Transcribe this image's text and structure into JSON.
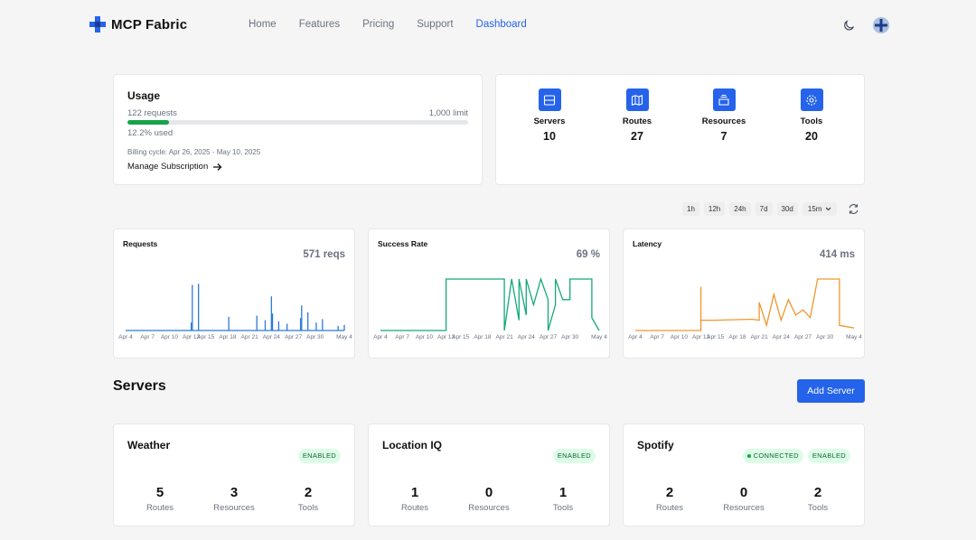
{
  "header": {
    "brand": "MCP Fabric",
    "nav": [
      "Home",
      "Features",
      "Pricing",
      "Support",
      "Dashboard"
    ],
    "active_nav": "Dashboard",
    "icons": [
      "plus-logo-icon",
      "moon-icon",
      "avatar"
    ]
  },
  "usage": {
    "title": "Usage",
    "requests": "122 requests",
    "limit": "1,000 limit",
    "progress_fraction": 0.122,
    "used": "12.2% used",
    "billing": "Billing cycle: Apr 26, 2025 - May 10, 2025",
    "manage": "Manage Subscription"
  },
  "stats": [
    {
      "label": "Servers",
      "value": "10",
      "icon": "server-icon"
    },
    {
      "label": "Routes",
      "value": "27",
      "icon": "map-icon"
    },
    {
      "label": "Resources",
      "value": "7",
      "icon": "archive-icon"
    },
    {
      "label": "Tools",
      "value": "20",
      "icon": "gear-icon"
    }
  ],
  "time_ranges": [
    "1h",
    "12h",
    "24h",
    "7d",
    "30d"
  ],
  "interval": "15m",
  "charts": [
    {
      "title": "Requests",
      "value": "571 reqs",
      "color": "#2a7ad6"
    },
    {
      "title": "Success Rate",
      "value": "69 %",
      "color": "#13a87a"
    },
    {
      "title": "Latency",
      "value": "414 ms",
      "color": "#f0962e"
    }
  ],
  "chart_data": [
    {
      "type": "line",
      "title": "Requests",
      "x": [
        "Apr 4",
        "Apr 7",
        "Apr 10",
        "Apr 13",
        "Apr 15",
        "Apr 18",
        "Apr 21",
        "Apr 24",
        "Apr 27",
        "Apr 30",
        "May 4"
      ],
      "x_range": [
        "Apr 4",
        "May 4"
      ],
      "spikes": [
        {
          "date": "Apr 13",
          "value": 7
        },
        {
          "date": "Apr 13",
          "value": 40
        },
        {
          "date": "Apr 14",
          "value": 41
        },
        {
          "date": "Apr 18",
          "value": 12
        },
        {
          "date": "Apr 22",
          "value": 13
        },
        {
          "date": "Apr 23",
          "value": 9
        },
        {
          "date": "Apr 24",
          "value": 30
        },
        {
          "date": "Apr 24",
          "value": 15
        },
        {
          "date": "Apr 25",
          "value": 8
        },
        {
          "date": "Apr 26",
          "value": 6
        },
        {
          "date": "Apr 28",
          "value": 11
        },
        {
          "date": "Apr 28",
          "value": 22
        },
        {
          "date": "Apr 29",
          "value": 16
        },
        {
          "date": "Apr 30",
          "value": 7
        },
        {
          "date": "May 1",
          "value": 10
        },
        {
          "date": "May 3",
          "value": 4
        },
        {
          "date": "May 4",
          "value": 5
        }
      ]
    },
    {
      "type": "line",
      "title": "Success Rate",
      "x": [
        "Apr 4",
        "Apr 7",
        "Apr 10",
        "Apr 13",
        "Apr 15",
        "Apr 18",
        "Apr 21",
        "Apr 24",
        "Apr 27",
        "Apr 30",
        "May 4"
      ],
      "points": [
        [
          "Apr 4",
          0
        ],
        [
          "Apr 13",
          0
        ],
        [
          "Apr 13",
          100
        ],
        [
          "Apr 21",
          100
        ],
        [
          "Apr 21",
          0
        ],
        [
          "Apr 22",
          100
        ],
        [
          "Apr 23",
          20
        ],
        [
          "Apr 23",
          100
        ],
        [
          "Apr 24",
          30
        ],
        [
          "Apr 24",
          100
        ],
        [
          "Apr 25",
          50
        ],
        [
          "Apr 26",
          100
        ],
        [
          "Apr 27",
          60
        ],
        [
          "Apr 27",
          0
        ],
        [
          "Apr 28",
          50
        ],
        [
          "Apr 28",
          100
        ],
        [
          "Apr 29",
          60
        ],
        [
          "Apr 30",
          60
        ],
        [
          "Apr 30",
          100
        ],
        [
          "May 3",
          100
        ],
        [
          "May 3",
          25
        ],
        [
          "May 4",
          0
        ]
      ]
    },
    {
      "type": "line",
      "title": "Latency",
      "x": [
        "Apr 4",
        "Apr 7",
        "Apr 10",
        "Apr 13",
        "Apr 15",
        "Apr 18",
        "Apr 21",
        "Apr 24",
        "Apr 27",
        "Apr 30",
        "May 4"
      ],
      "points": [
        [
          "Apr 4",
          0
        ],
        [
          "Apr 13",
          0
        ],
        [
          "Apr 13",
          85
        ],
        [
          "Apr 13",
          20
        ],
        [
          "Apr 15",
          20
        ],
        [
          "Apr 20",
          22
        ],
        [
          "Apr 21",
          20
        ],
        [
          "Apr 21",
          55
        ],
        [
          "Apr 22",
          10
        ],
        [
          "Apr 23",
          70
        ],
        [
          "Apr 24",
          20
        ],
        [
          "Apr 25",
          60
        ],
        [
          "Apr 26",
          30
        ],
        [
          "Apr 27",
          40
        ],
        [
          "Apr 28",
          25
        ],
        [
          "Apr 29",
          100
        ],
        [
          "May 2",
          100
        ],
        [
          "May 2",
          10
        ],
        [
          "May 4",
          5
        ]
      ]
    }
  ],
  "servers_section": {
    "title": "Servers",
    "add": "Add Server"
  },
  "servers": [
    {
      "name": "Weather",
      "badges": [
        "ENABLED"
      ],
      "routes": "5",
      "resources": "3",
      "tools": "2"
    },
    {
      "name": "Location IQ",
      "badges": [
        "ENABLED"
      ],
      "routes": "1",
      "resources": "0",
      "tools": "1"
    },
    {
      "name": "Spotify",
      "badges": [
        "CONNECTED",
        "ENABLED"
      ],
      "routes": "2",
      "resources": "0",
      "tools": "2"
    }
  ],
  "metric_labels": {
    "routes": "Routes",
    "resources": "Resources",
    "tools": "Tools"
  }
}
